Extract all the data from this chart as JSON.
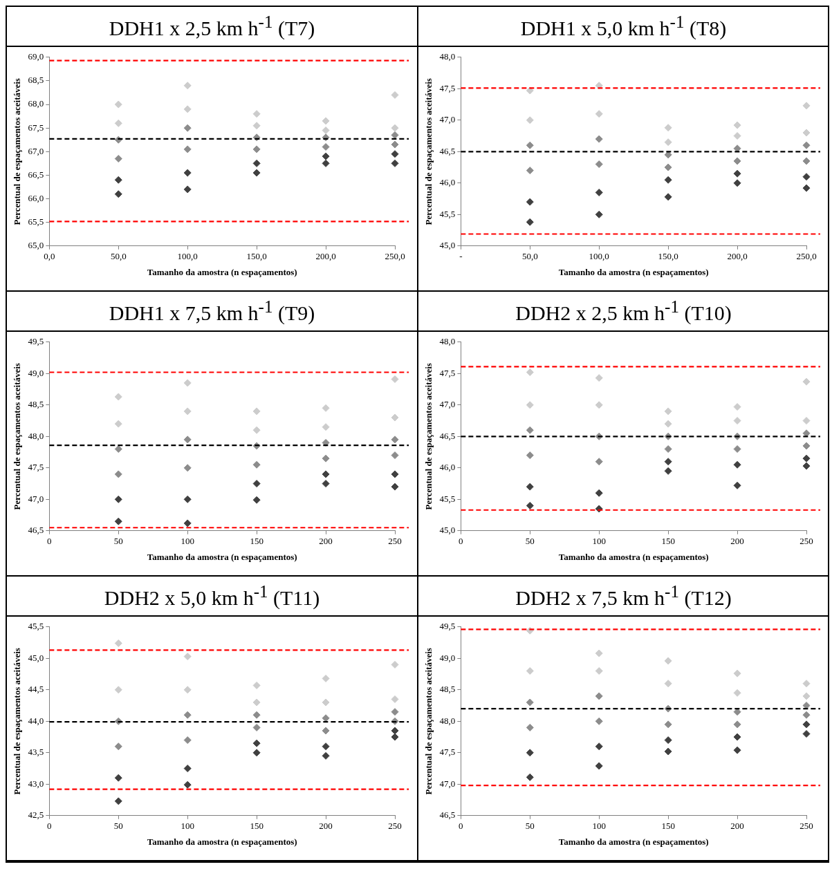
{
  "chart_data": [
    {
      "type": "scatter",
      "title": "DDH1 x 2,5 km h$^{-1}$ (T7)",
      "xlabel": "Tamanho da amostra (n espaçamentos)",
      "ylabel": "Percentual de espaçamentos aceitáveis",
      "marker": "diamond",
      "legend": false,
      "xlim": [
        0,
        250
      ],
      "xticks": [
        {
          "value": 0,
          "label": "0,0"
        },
        {
          "value": 50,
          "label": "50,0"
        },
        {
          "value": 100,
          "label": "100,0"
        },
        {
          "value": 150,
          "label": "150,0"
        },
        {
          "value": 200,
          "label": "200,0"
        },
        {
          "value": 250,
          "label": "250,0"
        }
      ],
      "ylim": [
        65,
        69
      ],
      "yticks": [
        {
          "value": 65,
          "label": "65,0"
        },
        {
          "value": 65.5,
          "label": "65,5"
        },
        {
          "value": 66,
          "label": "66,0"
        },
        {
          "value": 66.5,
          "label": "66,5"
        },
        {
          "value": 67,
          "label": "67,0"
        },
        {
          "value": 67.5,
          "label": "67,5"
        },
        {
          "value": 68,
          "label": "68,0"
        },
        {
          "value": 68.5,
          "label": "68,5"
        },
        {
          "value": 69,
          "label": "69,0"
        }
      ],
      "series": [
        {
          "color": "#404040",
          "x": [
            50,
            50,
            100,
            100,
            150,
            150,
            200,
            200,
            250,
            250
          ],
          "values": [
            66.1,
            66.4,
            66.2,
            66.55,
            66.55,
            66.75,
            66.75,
            66.9,
            66.75,
            66.95
          ]
        },
        {
          "color": "#8c8c8c",
          "x": [
            50,
            50,
            100,
            100,
            150,
            150,
            200,
            200,
            250,
            250
          ],
          "values": [
            66.85,
            67.25,
            67.05,
            67.5,
            67.05,
            67.3,
            67.1,
            67.3,
            67.15,
            67.35
          ]
        },
        {
          "color": "#cccccc",
          "x": [
            50,
            50,
            100,
            100,
            150,
            150,
            200,
            200,
            250,
            250
          ],
          "values": [
            67.6,
            68.0,
            67.9,
            68.4,
            67.55,
            67.8,
            67.45,
            67.65,
            67.5,
            68.2
          ]
        }
      ],
      "ref_lines": [
        {
          "axis": "y",
          "value": 68.93,
          "color": "#ff0000",
          "line_style": "dashed"
        },
        {
          "axis": "y",
          "value": 67.27,
          "color": "#000000",
          "line_style": "dashed"
        },
        {
          "axis": "y",
          "value": 65.52,
          "color": "#ff0000",
          "line_style": "dashed"
        }
      ]
    },
    {
      "type": "scatter",
      "title": "DDH1 x 5,0 km h$^{-1}$ (T8)",
      "xlabel": "Tamanho da amostra (n espaçamentos)",
      "ylabel": "Percentual de espaçamentos aceitáveis",
      "marker": "diamond",
      "legend": false,
      "xlim": [
        0,
        250
      ],
      "xticks": [
        {
          "value": 0,
          "label": "-"
        },
        {
          "value": 50,
          "label": "50,0"
        },
        {
          "value": 100,
          "label": "100,0"
        },
        {
          "value": 150,
          "label": "150,0"
        },
        {
          "value": 200,
          "label": "200,0"
        },
        {
          "value": 250,
          "label": "250,0"
        }
      ],
      "ylim": [
        45,
        48
      ],
      "yticks": [
        {
          "value": 45,
          "label": "45,0"
        },
        {
          "value": 45.5,
          "label": "45,5"
        },
        {
          "value": 46,
          "label": "46,0"
        },
        {
          "value": 46.5,
          "label": "46,5"
        },
        {
          "value": 47,
          "label": "47,0"
        },
        {
          "value": 47.5,
          "label": "47,5"
        },
        {
          "value": 48,
          "label": "48,0"
        }
      ],
      "series": [
        {
          "color": "#404040",
          "x": [
            50,
            50,
            100,
            100,
            150,
            150,
            200,
            200,
            250,
            250
          ],
          "values": [
            45.38,
            45.7,
            45.5,
            45.85,
            45.78,
            46.05,
            46.0,
            46.15,
            45.92,
            46.1
          ]
        },
        {
          "color": "#8c8c8c",
          "x": [
            50,
            50,
            100,
            100,
            150,
            150,
            200,
            200,
            250,
            250
          ],
          "values": [
            46.2,
            46.6,
            46.3,
            46.7,
            46.25,
            46.45,
            46.35,
            46.55,
            46.35,
            46.6
          ]
        },
        {
          "color": "#cccccc",
          "x": [
            50,
            50,
            100,
            100,
            150,
            150,
            200,
            200,
            250,
            250
          ],
          "values": [
            47.0,
            47.47,
            47.1,
            47.55,
            46.65,
            46.88,
            46.75,
            46.92,
            46.8,
            47.23
          ]
        }
      ],
      "ref_lines": [
        {
          "axis": "y",
          "value": 47.51,
          "color": "#ff0000",
          "line_style": "dashed"
        },
        {
          "axis": "y",
          "value": 46.5,
          "color": "#000000",
          "line_style": "dashed"
        },
        {
          "axis": "y",
          "value": 45.19,
          "color": "#ff0000",
          "line_style": "dashed"
        }
      ]
    },
    {
      "type": "scatter",
      "title": "DDH1 x 7,5 km h$^{-1}$ (T9)",
      "xlabel": "Tamanho da amostra (n espaçamentos)",
      "ylabel": "Percentual de espaçamentos aceitáveis",
      "marker": "diamond",
      "legend": false,
      "xlim": [
        0,
        250
      ],
      "xticks": [
        0,
        50,
        100,
        150,
        200,
        250
      ],
      "ylim": [
        46.5,
        49.5
      ],
      "yticks": [
        {
          "value": 46.5,
          "label": "46,5"
        },
        {
          "value": 47,
          "label": "47,0"
        },
        {
          "value": 47.5,
          "label": "47,5"
        },
        {
          "value": 48,
          "label": "48,0"
        },
        {
          "value": 48.5,
          "label": "48,5"
        },
        {
          "value": 49,
          "label": "49,0"
        },
        {
          "value": 49.5,
          "label": "49,5"
        }
      ],
      "series": [
        {
          "color": "#404040",
          "x": [
            50,
            50,
            100,
            100,
            150,
            150,
            200,
            200,
            250,
            250
          ],
          "values": [
            46.65,
            47.0,
            46.62,
            47.0,
            46.99,
            47.25,
            47.25,
            47.4,
            47.2,
            47.4
          ]
        },
        {
          "color": "#8c8c8c",
          "x": [
            50,
            50,
            100,
            100,
            150,
            150,
            200,
            200,
            250,
            250
          ],
          "values": [
            47.4,
            47.8,
            47.5,
            47.95,
            47.55,
            47.85,
            47.65,
            47.9,
            47.7,
            47.95
          ]
        },
        {
          "color": "#cccccc",
          "x": [
            50,
            50,
            100,
            100,
            150,
            150,
            200,
            200,
            250,
            250
          ],
          "values": [
            48.2,
            48.63,
            48.4,
            48.85,
            48.1,
            48.4,
            48.15,
            48.45,
            48.3,
            48.91
          ]
        }
      ],
      "ref_lines": [
        {
          "axis": "y",
          "value": 49.02,
          "color": "#ff0000",
          "line_style": "dashed"
        },
        {
          "axis": "y",
          "value": 47.86,
          "color": "#000000",
          "line_style": "dashed"
        },
        {
          "axis": "y",
          "value": 46.55,
          "color": "#ff0000",
          "line_style": "dashed"
        }
      ]
    },
    {
      "type": "scatter",
      "title": "DDH2 x 2,5 km h$^{-1}$ (T10)",
      "xlabel": "Tamanho da amostra (n espaçamentos)",
      "ylabel": "Percentual de espaçamentos aceitáveis",
      "marker": "diamond",
      "legend": false,
      "xlim": [
        0,
        250
      ],
      "xticks": [
        0,
        50,
        100,
        150,
        200,
        250
      ],
      "ylim": [
        45,
        48
      ],
      "yticks": [
        {
          "value": 45,
          "label": "45,0"
        },
        {
          "value": 45.5,
          "label": "45,5"
        },
        {
          "value": 46,
          "label": "46,0"
        },
        {
          "value": 46.5,
          "label": "46,5"
        },
        {
          "value": 47,
          "label": "47,0"
        },
        {
          "value": 47.5,
          "label": "47,5"
        },
        {
          "value": 48,
          "label": "48,0"
        }
      ],
      "series": [
        {
          "color": "#404040",
          "x": [
            50,
            50,
            100,
            100,
            150,
            150,
            200,
            200,
            250,
            250
          ],
          "values": [
            45.4,
            45.7,
            45.35,
            45.6,
            45.95,
            46.1,
            45.72,
            46.05,
            46.03,
            46.15
          ]
        },
        {
          "color": "#8c8c8c",
          "x": [
            50,
            50,
            100,
            100,
            150,
            150,
            200,
            200,
            250,
            250
          ],
          "values": [
            46.2,
            46.6,
            46.1,
            46.5,
            46.3,
            46.5,
            46.3,
            46.5,
            46.35,
            46.55
          ]
        },
        {
          "color": "#cccccc",
          "x": [
            50,
            50,
            100,
            100,
            150,
            150,
            200,
            200,
            250,
            250
          ],
          "values": [
            47.0,
            47.52,
            47.0,
            47.43,
            46.7,
            46.9,
            46.75,
            46.97,
            46.75,
            47.37
          ]
        }
      ],
      "ref_lines": [
        {
          "axis": "y",
          "value": 47.61,
          "color": "#ff0000",
          "line_style": "dashed"
        },
        {
          "axis": "y",
          "value": 46.5,
          "color": "#000000",
          "line_style": "dashed"
        },
        {
          "axis": "y",
          "value": 45.33,
          "color": "#ff0000",
          "line_style": "dashed"
        }
      ]
    },
    {
      "type": "scatter",
      "title": "DDH2 x 5,0 km h$^{-1}$ (T11)",
      "xlabel": "Tamanho da amostra (n espaçamentos)",
      "ylabel": "Percentual de espaçamentos aceitáveis",
      "marker": "diamond",
      "legend": false,
      "xlim": [
        0,
        250
      ],
      "xticks": [
        0,
        50,
        100,
        150,
        200,
        250
      ],
      "ylim": [
        42.5,
        45.5
      ],
      "yticks": [
        {
          "value": 42.5,
          "label": "42,5"
        },
        {
          "value": 43,
          "label": "43,0"
        },
        {
          "value": 43.5,
          "label": "43,5"
        },
        {
          "value": 44,
          "label": "44,0"
        },
        {
          "value": 44.5,
          "label": "44,5"
        },
        {
          "value": 45,
          "label": "45,0"
        },
        {
          "value": 45.5,
          "label": "45,5"
        }
      ],
      "series": [
        {
          "color": "#404040",
          "x": [
            50,
            50,
            100,
            100,
            150,
            150,
            200,
            200,
            250,
            250
          ],
          "values": [
            42.73,
            43.1,
            42.99,
            43.25,
            43.5,
            43.65,
            43.45,
            43.6,
            43.75,
            43.85
          ]
        },
        {
          "color": "#8c8c8c",
          "x": [
            50,
            50,
            100,
            100,
            150,
            150,
            200,
            200,
            250,
            250
          ],
          "values": [
            43.6,
            44.0,
            43.7,
            44.1,
            43.9,
            44.1,
            43.85,
            44.05,
            44.0,
            44.15
          ]
        },
        {
          "color": "#cccccc",
          "x": [
            50,
            50,
            100,
            100,
            150,
            150,
            200,
            200,
            250,
            250
          ],
          "values": [
            44.5,
            45.24,
            44.5,
            45.03,
            44.3,
            44.57,
            44.3,
            44.68,
            44.35,
            44.9
          ]
        }
      ],
      "ref_lines": [
        {
          "axis": "y",
          "value": 45.13,
          "color": "#ff0000",
          "line_style": "dashed"
        },
        {
          "axis": "y",
          "value": 43.99,
          "color": "#000000",
          "line_style": "dashed"
        },
        {
          "axis": "y",
          "value": 42.92,
          "color": "#ff0000",
          "line_style": "dashed"
        }
      ]
    },
    {
      "type": "scatter",
      "title": "DDH2 x 7,5 km h$^{-1}$ (T12)",
      "xlabel": "Tamanho da amostra (n espaçamentos)",
      "ylabel": "Percentual de espaçamentos aceitáveis",
      "marker": "diamond",
      "legend": false,
      "xlim": [
        0,
        250
      ],
      "xticks": [
        0,
        50,
        100,
        150,
        200,
        250
      ],
      "ylim": [
        46.5,
        49.5
      ],
      "yticks": [
        {
          "value": 46.5,
          "label": "46,5"
        },
        {
          "value": 47,
          "label": "47,0"
        },
        {
          "value": 47.5,
          "label": "47,5"
        },
        {
          "value": 48,
          "label": "48,0"
        },
        {
          "value": 48.5,
          "label": "48,5"
        },
        {
          "value": 49,
          "label": "49,0"
        },
        {
          "value": 49.5,
          "label": "49,5"
        }
      ],
      "series": [
        {
          "color": "#404040",
          "x": [
            50,
            50,
            100,
            100,
            150,
            150,
            200,
            200,
            250,
            250
          ],
          "values": [
            47.11,
            47.5,
            47.29,
            47.6,
            47.52,
            47.7,
            47.54,
            47.75,
            47.8,
            47.95
          ]
        },
        {
          "color": "#8c8c8c",
          "x": [
            50,
            50,
            100,
            100,
            150,
            150,
            200,
            200,
            250,
            250
          ],
          "values": [
            47.9,
            48.3,
            48.0,
            48.4,
            47.95,
            48.2,
            47.95,
            48.15,
            48.1,
            48.25
          ]
        },
        {
          "color": "#cccccc",
          "x": [
            50,
            50,
            100,
            100,
            150,
            150,
            200,
            200,
            250,
            250
          ],
          "values": [
            48.8,
            49.44,
            48.8,
            49.08,
            48.6,
            48.96,
            48.45,
            48.76,
            48.4,
            48.6
          ]
        }
      ],
      "ref_lines": [
        {
          "axis": "y",
          "value": 49.46,
          "color": "#ff0000",
          "line_style": "dashed"
        },
        {
          "axis": "y",
          "value": 48.2,
          "color": "#000000",
          "line_style": "dashed"
        },
        {
          "axis": "y",
          "value": 46.98,
          "color": "#ff0000",
          "line_style": "dashed"
        }
      ]
    }
  ]
}
